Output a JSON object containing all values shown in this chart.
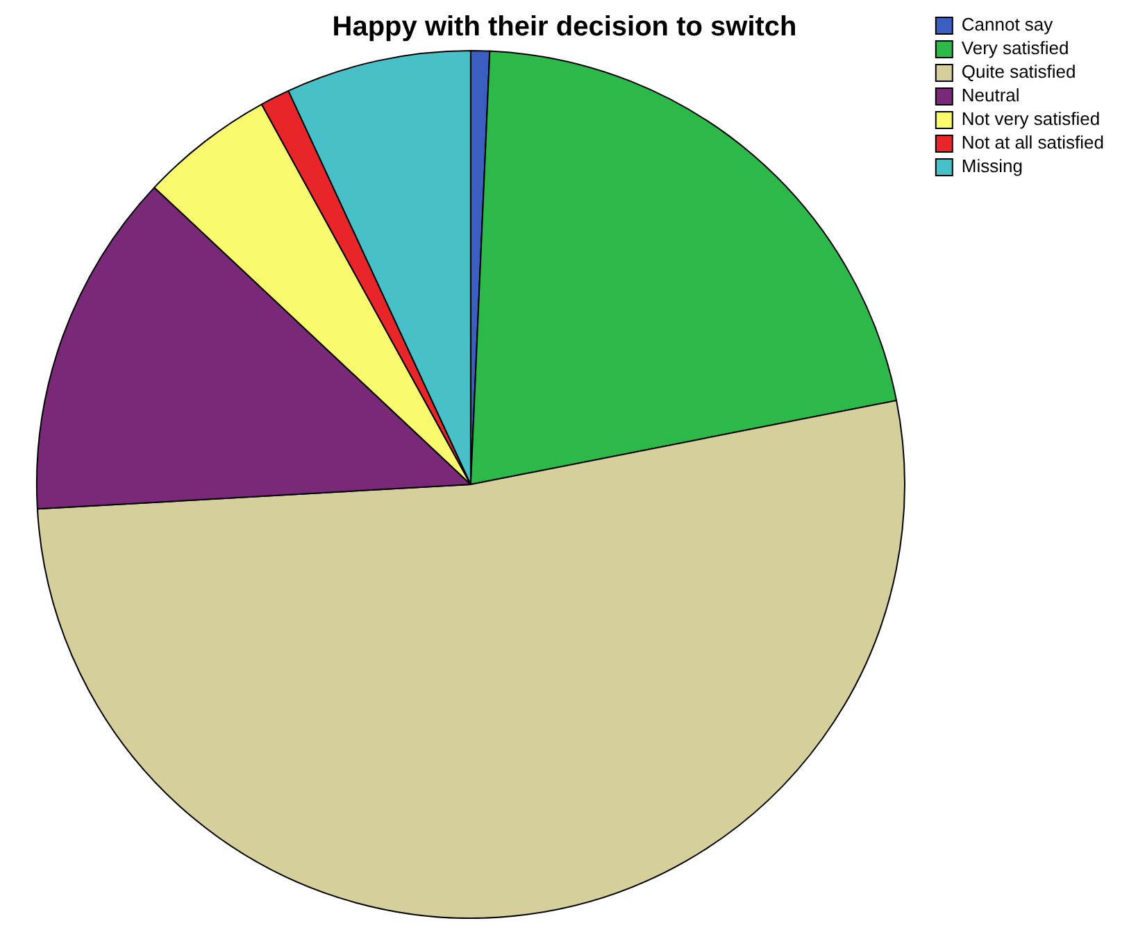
{
  "chart_data": {
    "type": "pie",
    "title": "Happy with their decision to switch",
    "categories": [
      "Cannot say",
      "Very satisfied",
      "Quite satisfied",
      "Neutral",
      "Not very satisfied",
      "Not at all satisfied",
      "Missing"
    ],
    "values": [
      0.7,
      21.2,
      52.2,
      12.9,
      5.0,
      1.1,
      6.9
    ],
    "colors": [
      "#3b5fc0",
      "#2db84a",
      "#d4cf9b",
      "#7a2878",
      "#fafa6e",
      "#e8262a",
      "#48c0c8"
    ],
    "legend": "top right"
  }
}
